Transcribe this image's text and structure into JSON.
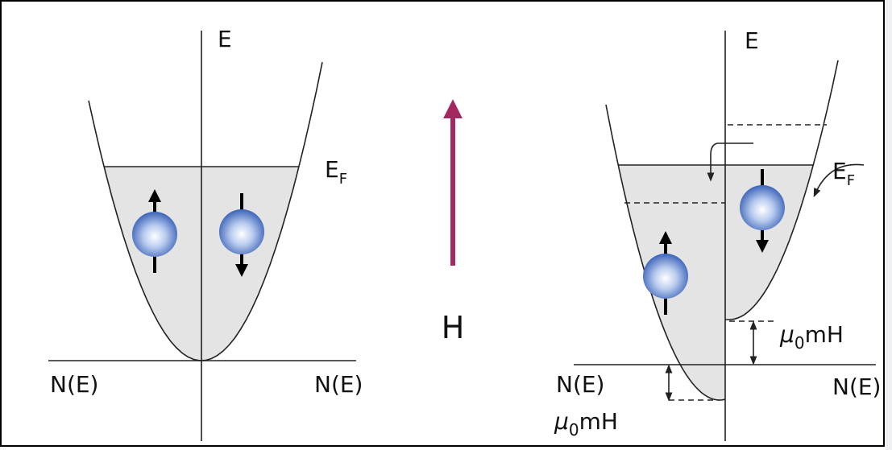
{
  "left_panel": {
    "energy_axis_label": "E",
    "fermi_label": {
      "main": "E",
      "sub": "F"
    },
    "dos_left_label": "N(E)",
    "dos_right_label": "N(E)"
  },
  "field_label": "H",
  "right_panel": {
    "energy_axis_label": "E",
    "fermi_label": {
      "main": "E",
      "sub": "F"
    },
    "splitting_label_upper": {
      "symbol": "μ",
      "sub": "0",
      "rest": "mH"
    },
    "dos_left_label": "N(E)",
    "dos_right_label": "N(E)",
    "splitting_label_lower": {
      "symbol": "μ",
      "sub": "0",
      "rest": "mH"
    }
  }
}
